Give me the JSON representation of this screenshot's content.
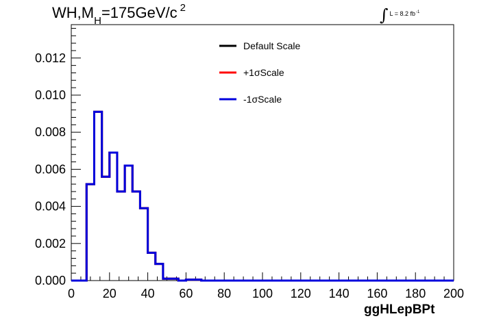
{
  "title": {
    "prefix": "WH,M",
    "subscript": "H",
    "suffix": "=175GeV/c",
    "superscript": "2"
  },
  "luminosity": {
    "symbol": "∫",
    "text": "L = 8.2 fb",
    "superscript": "-1"
  },
  "chart_data": {
    "type": "line",
    "style": "step-histogram",
    "xlabel": "ggHLepBPt",
    "ylabel": "",
    "xlim": [
      0,
      200
    ],
    "ylim": [
      0,
      0.0138
    ],
    "xticks": [
      "0",
      "20",
      "40",
      "60",
      "80",
      "100",
      "120",
      "140",
      "160",
      "180",
      "200"
    ],
    "yticks": [
      "0.000",
      "0.002",
      "0.004",
      "0.006",
      "0.008",
      "0.010",
      "0.012"
    ],
    "grid": false,
    "legend_position": "top-right",
    "bin_width": 4,
    "series": [
      {
        "name": "Default Scale",
        "color": "#000000",
        "values": [
          0,
          0,
          0.0052,
          0.0091,
          0.0056,
          0.0069,
          0.0048,
          0.0062,
          0.0048,
          0.0039,
          0.0015,
          0.0009,
          0.0001,
          0.0001,
          0,
          5e-05,
          5e-05,
          0,
          0,
          0,
          0,
          0,
          0,
          0,
          0,
          0,
          0,
          0,
          0,
          0,
          0,
          0,
          0,
          0,
          0,
          0,
          0,
          0,
          0,
          0,
          0,
          0,
          0,
          0,
          0,
          0,
          0,
          0,
          0,
          0
        ]
      },
      {
        "name": "+1σScale",
        "color": "#ff0000",
        "values": [
          0,
          0,
          0.0052,
          0.0091,
          0.0056,
          0.0069,
          0.0048,
          0.0062,
          0.0048,
          0.0039,
          0.0015,
          0.0009,
          0.0001,
          0.0001,
          0,
          5e-05,
          5e-05,
          0,
          0,
          0,
          0,
          0,
          0,
          0,
          0,
          0,
          0,
          0,
          0,
          0,
          0,
          0,
          0,
          0,
          0,
          0,
          0,
          0,
          0,
          0,
          0,
          0,
          0,
          0,
          0,
          0,
          0,
          0,
          0,
          0
        ]
      },
      {
        "name": "-1σScale",
        "color": "#0000dd",
        "values": [
          0,
          0,
          0.0052,
          0.0091,
          0.0056,
          0.0069,
          0.0048,
          0.0062,
          0.0048,
          0.0039,
          0.0015,
          0.0009,
          0.0001,
          0.0001,
          0,
          5e-05,
          5e-05,
          0,
          0,
          0,
          0,
          0,
          0,
          0,
          0,
          0,
          0,
          0,
          0,
          0,
          0,
          0,
          0,
          0,
          0,
          0,
          0,
          0,
          0,
          0,
          0,
          0,
          0,
          0,
          0,
          0,
          0,
          0,
          0,
          0
        ]
      }
    ]
  }
}
